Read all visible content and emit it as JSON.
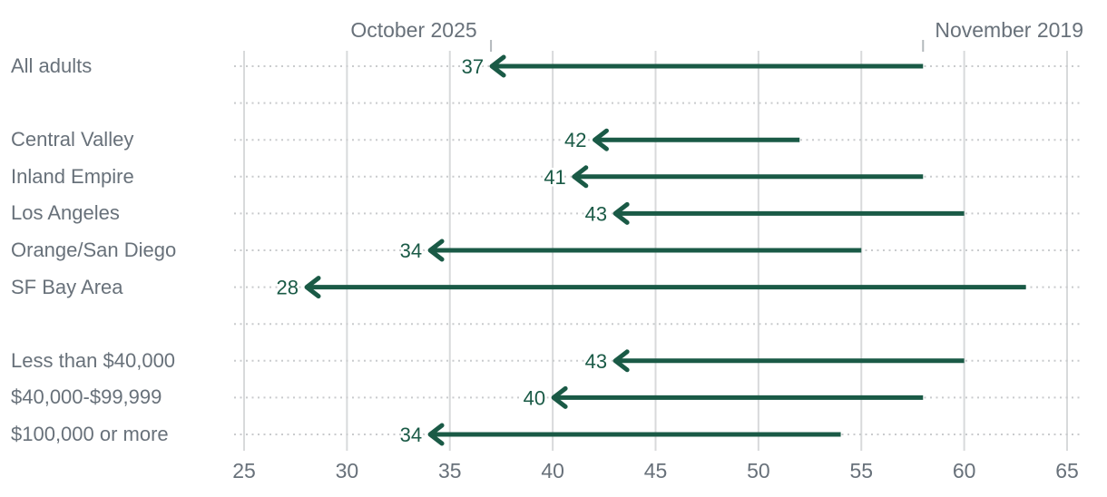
{
  "header": {
    "left_label": "October 2025",
    "right_label": "November 2019"
  },
  "colors": {
    "arrow_green": "#1A5A46",
    "text_gray": "#68717A",
    "gridline": "#D8DADB",
    "dotted_line": "#C9CBCD",
    "header_tick": "#B3B8BC"
  },
  "chart_data": {
    "type": "arrow",
    "title": "",
    "description": "Change from November 2019 to October 2025; arrows point from 2019 value to 2025 value",
    "x_axis": {
      "min": 25,
      "max": 65,
      "ticks": [
        25,
        30,
        35,
        40,
        45,
        50,
        55,
        60,
        65
      ]
    },
    "legend": {
      "arrow_head_period": "October 2025",
      "arrow_tail_period": "November 2019"
    },
    "grid": "vertical solid lines at ticks, dotted horizontal guide per row",
    "rows": [
      {
        "label": "All adults",
        "oct_2025": 37,
        "nov_2019": 58
      },
      {
        "spacer": true
      },
      {
        "label": "Central Valley",
        "oct_2025": 42,
        "nov_2019": 52
      },
      {
        "label": "Inland Empire",
        "oct_2025": 41,
        "nov_2019": 58
      },
      {
        "label": "Los Angeles",
        "oct_2025": 43,
        "nov_2019": 60
      },
      {
        "label": "Orange/San Diego",
        "oct_2025": 34,
        "nov_2019": 55
      },
      {
        "label": "SF Bay Area",
        "oct_2025": 28,
        "nov_2019": 63
      },
      {
        "spacer": true
      },
      {
        "label": "Less than $40,000",
        "oct_2025": 43,
        "nov_2019": 60
      },
      {
        "label": "$40,000-$99,999",
        "oct_2025": 40,
        "nov_2019": 58
      },
      {
        "label": "$100,000 or more",
        "oct_2025": 34,
        "nov_2019": 54
      }
    ]
  }
}
